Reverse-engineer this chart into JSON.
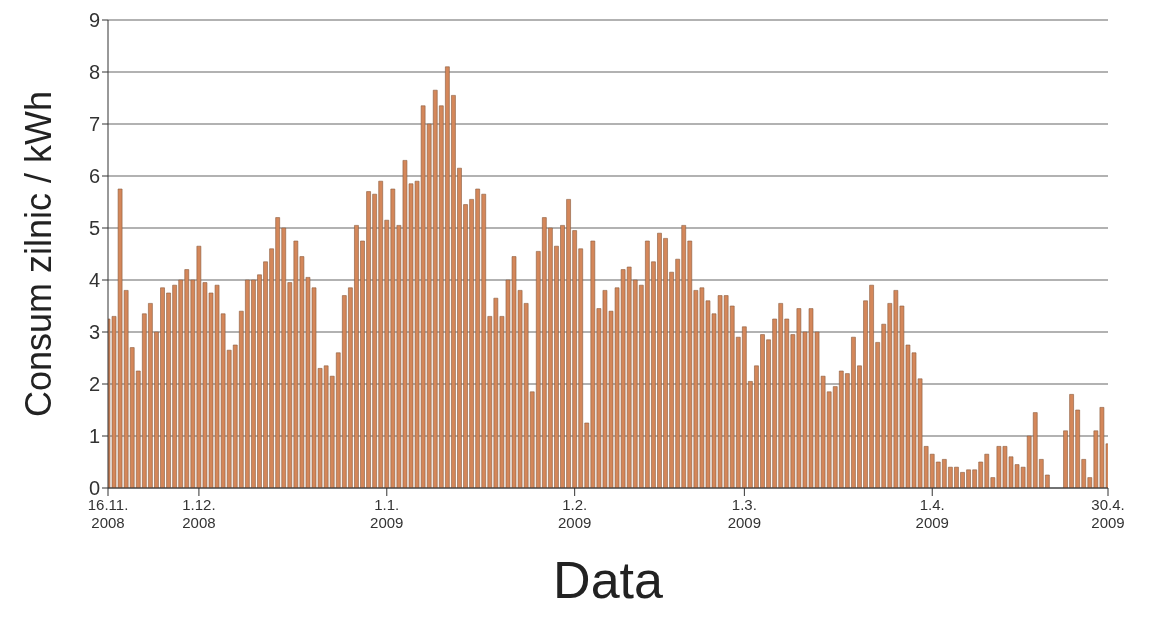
{
  "chart_data": {
    "type": "bar",
    "xlabel": "Data",
    "ylabel": "Consum zilnic / kWh",
    "color": "#d4875a",
    "x": [
      "2008-11-16",
      "2008-11-17",
      "2008-11-18",
      "2008-11-19",
      "2008-11-20",
      "2008-11-21",
      "2008-11-22",
      "2008-11-23",
      "2008-11-24",
      "2008-11-25",
      "2008-11-26",
      "2008-11-27",
      "2008-11-28",
      "2008-11-29",
      "2008-11-30",
      "2008-12-01",
      "2008-12-02",
      "2008-12-03",
      "2008-12-04",
      "2008-12-05",
      "2008-12-06",
      "2008-12-07",
      "2008-12-08",
      "2008-12-09",
      "2008-12-10",
      "2008-12-11",
      "2008-12-12",
      "2008-12-13",
      "2008-12-14",
      "2008-12-15",
      "2008-12-16",
      "2008-12-17",
      "2008-12-18",
      "2008-12-19",
      "2008-12-20",
      "2008-12-21",
      "2008-12-22",
      "2008-12-23",
      "2008-12-24",
      "2008-12-25",
      "2008-12-26",
      "2008-12-27",
      "2008-12-28",
      "2008-12-29",
      "2008-12-30",
      "2008-12-31",
      "2009-01-01",
      "2009-01-02",
      "2009-01-03",
      "2009-01-04",
      "2009-01-05",
      "2009-01-06",
      "2009-01-07",
      "2009-01-08",
      "2009-01-09",
      "2009-01-10",
      "2009-01-11",
      "2009-01-12",
      "2009-01-13",
      "2009-01-14",
      "2009-01-15",
      "2009-01-16",
      "2009-01-17",
      "2009-01-18",
      "2009-01-19",
      "2009-01-20",
      "2009-01-21",
      "2009-01-22",
      "2009-01-23",
      "2009-01-24",
      "2009-01-25",
      "2009-01-26",
      "2009-01-27",
      "2009-01-28",
      "2009-01-29",
      "2009-01-30",
      "2009-01-31",
      "2009-02-01",
      "2009-02-02",
      "2009-02-03",
      "2009-02-04",
      "2009-02-05",
      "2009-02-06",
      "2009-02-07",
      "2009-02-08",
      "2009-02-09",
      "2009-02-10",
      "2009-02-11",
      "2009-02-12",
      "2009-02-13",
      "2009-02-14",
      "2009-02-15",
      "2009-02-16",
      "2009-02-17",
      "2009-02-18",
      "2009-02-19",
      "2009-02-20",
      "2009-02-21",
      "2009-02-22",
      "2009-02-23",
      "2009-02-24",
      "2009-02-25",
      "2009-02-26",
      "2009-02-27",
      "2009-02-28",
      "2009-03-01",
      "2009-03-02",
      "2009-03-03",
      "2009-03-04",
      "2009-03-05",
      "2009-03-06",
      "2009-03-07",
      "2009-03-08",
      "2009-03-09",
      "2009-03-10",
      "2009-03-11",
      "2009-03-12",
      "2009-03-13",
      "2009-03-14",
      "2009-03-15",
      "2009-03-16",
      "2009-03-17",
      "2009-03-18",
      "2009-03-19",
      "2009-03-20",
      "2009-03-21",
      "2009-03-22",
      "2009-03-23",
      "2009-03-24",
      "2009-03-25",
      "2009-03-26",
      "2009-03-27",
      "2009-03-28",
      "2009-03-29",
      "2009-03-30",
      "2009-03-31",
      "2009-04-01",
      "2009-04-02",
      "2009-04-03",
      "2009-04-04",
      "2009-04-05",
      "2009-04-06",
      "2009-04-07",
      "2009-04-08",
      "2009-04-09",
      "2009-04-10",
      "2009-04-11",
      "2009-04-12",
      "2009-04-13",
      "2009-04-14",
      "2009-04-15",
      "2009-04-16",
      "2009-04-17",
      "2009-04-18",
      "2009-04-19",
      "2009-04-20",
      "2009-04-21",
      "2009-04-22",
      "2009-04-23",
      "2009-04-24",
      "2009-04-25",
      "2009-04-26",
      "2009-04-27",
      "2009-04-28",
      "2009-04-29",
      "2009-04-30"
    ],
    "values": [
      3.25,
      3.3,
      5.75,
      3.8,
      2.7,
      2.25,
      3.35,
      3.55,
      3.0,
      3.85,
      3.75,
      3.9,
      4.0,
      4.2,
      4.0,
      4.65,
      3.95,
      3.75,
      3.9,
      3.35,
      2.65,
      2.75,
      3.4,
      4.0,
      4.0,
      4.1,
      4.35,
      4.6,
      5.2,
      5.0,
      3.95,
      4.75,
      4.45,
      4.05,
      3.85,
      2.3,
      2.35,
      2.15,
      2.6,
      3.7,
      3.85,
      5.05,
      4.75,
      5.7,
      5.65,
      5.9,
      5.15,
      5.75,
      5.05,
      6.3,
      5.85,
      5.9,
      7.35,
      7.0,
      7.65,
      7.35,
      8.1,
      7.55,
      6.15,
      5.45,
      5.55,
      5.75,
      5.65,
      3.3,
      3.65,
      3.3,
      4.0,
      4.45,
      3.8,
      3.55,
      1.85,
      4.55,
      5.2,
      5.0,
      4.65,
      5.05,
      5.55,
      4.95,
      4.6,
      1.25,
      4.75,
      3.45,
      3.8,
      3.4,
      3.85,
      4.2,
      4.25,
      4.0,
      3.9,
      4.75,
      4.35,
      4.9,
      4.8,
      4.15,
      4.4,
      5.05,
      4.75,
      3.8,
      3.85,
      3.6,
      3.35,
      3.7,
      3.7,
      3.5,
      2.9,
      3.1,
      2.05,
      2.35,
      2.95,
      2.85,
      3.25,
      3.55,
      3.25,
      2.95,
      3.45,
      3.0,
      3.45,
      3.0,
      2.15,
      1.85,
      1.95,
      2.25,
      2.2,
      2.9,
      2.35,
      3.6,
      3.9,
      2.8,
      3.15,
      3.55,
      3.8,
      3.5,
      2.75,
      2.6,
      2.1,
      0.8,
      0.65,
      0.5,
      0.55,
      0.4,
      0.4,
      0.3,
      0.35,
      0.35,
      0.5,
      0.65,
      0.2,
      0.8,
      0.8,
      0.6,
      0.45,
      0.4,
      1.0,
      1.45,
      0.55,
      0.25,
      0,
      0,
      1.1,
      1.8,
      1.5,
      0.55,
      0.2,
      1.1,
      1.55,
      0.85
    ],
    "xlim": [
      "2008-11-16",
      "2009-04-30"
    ],
    "xticks": [
      {
        "value": "2008-11-16",
        "label": "16.11.\n2008"
      },
      {
        "value": "2008-12-01",
        "label": "1.12.\n2008"
      },
      {
        "value": "2009-01-01",
        "label": "1.1.\n2009"
      },
      {
        "value": "2009-02-01",
        "label": "1.2.\n2009"
      },
      {
        "value": "2009-03-01",
        "label": "1.3.\n2009"
      },
      {
        "value": "2009-04-01",
        "label": "1.4.\n2009"
      },
      {
        "value": "2009-04-30",
        "label": "30.4.\n2009"
      }
    ],
    "ylim": [
      0,
      9
    ],
    "yticks": [
      0,
      1,
      2,
      3,
      4,
      5,
      6,
      7,
      8,
      9
    ],
    "grid": "y"
  }
}
